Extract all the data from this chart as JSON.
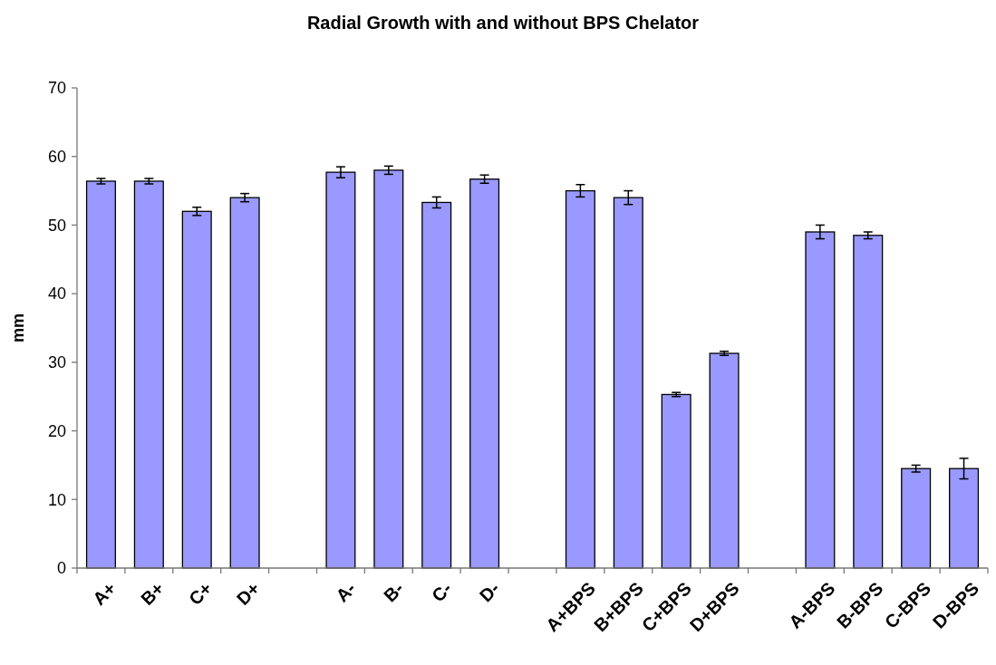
{
  "chart_data": {
    "type": "bar",
    "title": "Radial Growth with and without BPS Chelator",
    "ylabel": "mm",
    "categories": [
      "A+",
      "B+",
      "C+",
      "D+",
      null,
      "A-",
      "B-",
      "C-",
      "D-",
      null,
      "A+BPS",
      "B+BPS",
      "C+BPS",
      "D+BPS",
      null,
      "A-BPS",
      "B-BPS",
      "C-BPS",
      "D-BPS"
    ],
    "values": [
      56.4,
      56.4,
      52,
      54,
      null,
      57.7,
      58,
      53.3,
      56.7,
      null,
      55,
      54,
      25.3,
      31.3,
      null,
      49,
      48.5,
      14.5,
      14.5
    ],
    "errors": [
      0.4,
      0.4,
      0.6,
      0.6,
      null,
      0.8,
      0.6,
      0.8,
      0.6,
      null,
      0.9,
      1,
      0.3,
      0.3,
      null,
      1,
      0.5,
      0.5,
      1.5
    ],
    "color": "#9999ff",
    "ylim": [
      0,
      70
    ],
    "yticks": [
      0,
      10,
      20,
      30,
      40,
      50,
      60,
      70
    ],
    "grid": false
  }
}
